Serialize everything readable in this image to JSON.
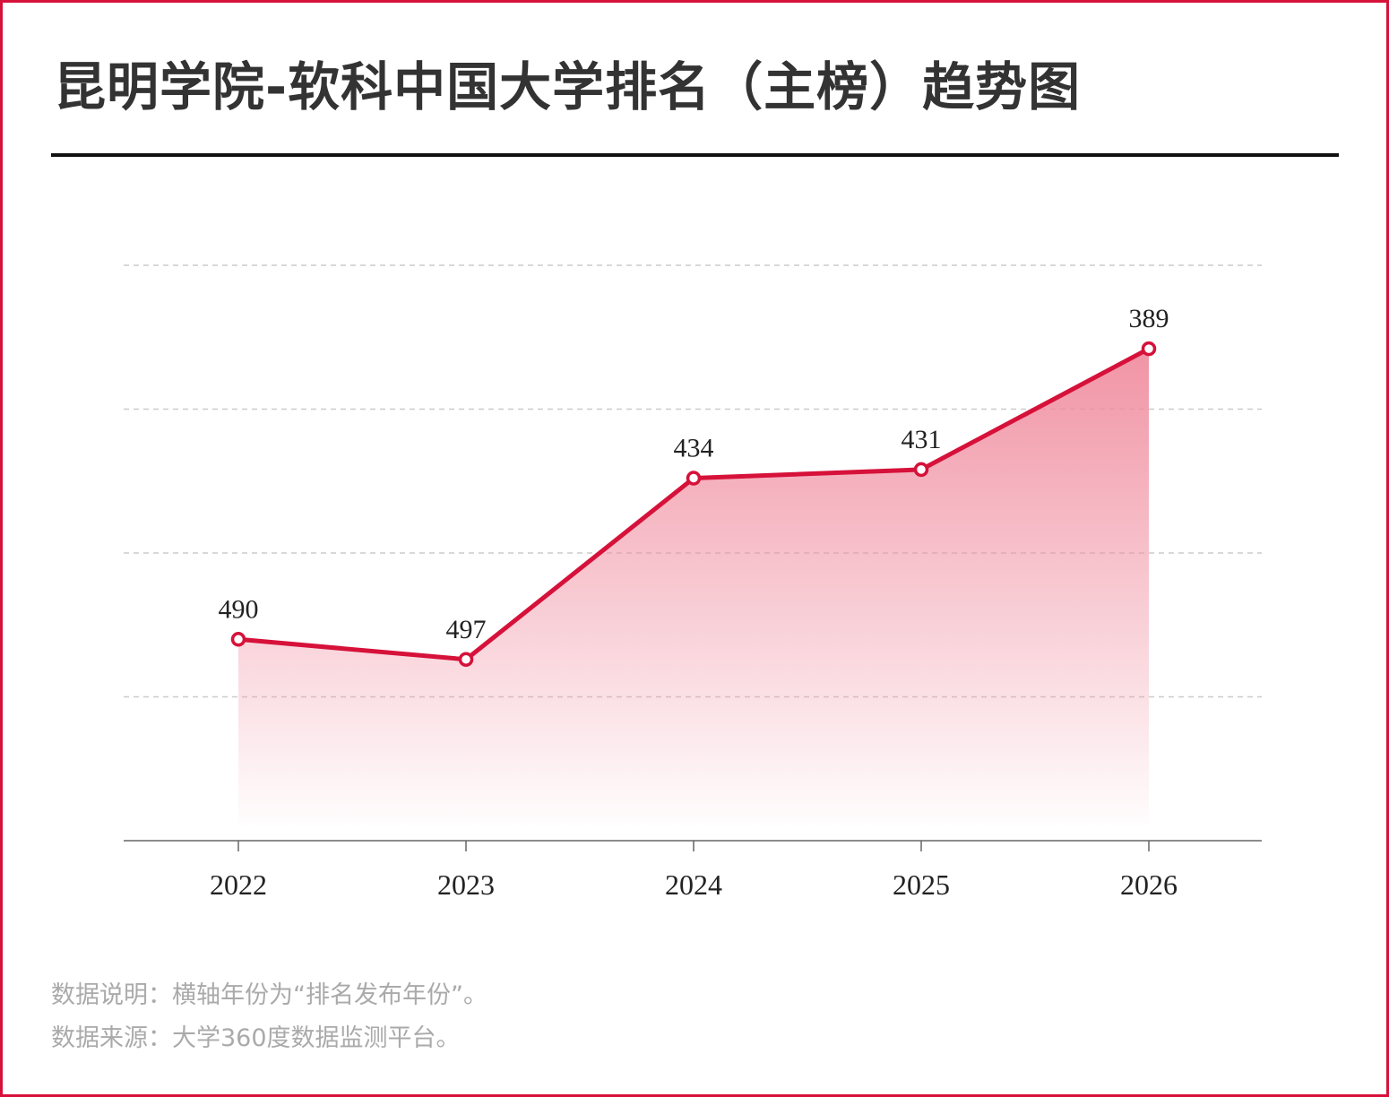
{
  "title": "昆明学院-软科中国大学排名（主榜）趋势图",
  "chart_data": {
    "type": "area",
    "title": "昆明学院-软科中国大学排名（主榜）趋势图",
    "xlabel": "",
    "ylabel": "",
    "categories": [
      "2022",
      "2023",
      "2024",
      "2025",
      "2026"
    ],
    "values": [
      490,
      497,
      434,
      431,
      389
    ],
    "y_inverted": true,
    "ylim": [
      560,
      360
    ],
    "gridlines": [
      360,
      410,
      460,
      510
    ],
    "grid": true,
    "line_color": "#d6113a",
    "fill_color": "#f08ea0"
  },
  "footer": {
    "note": "数据说明：横轴年份为“排名发布年份”。",
    "source": "数据来源：大学360度数据监测平台。"
  }
}
